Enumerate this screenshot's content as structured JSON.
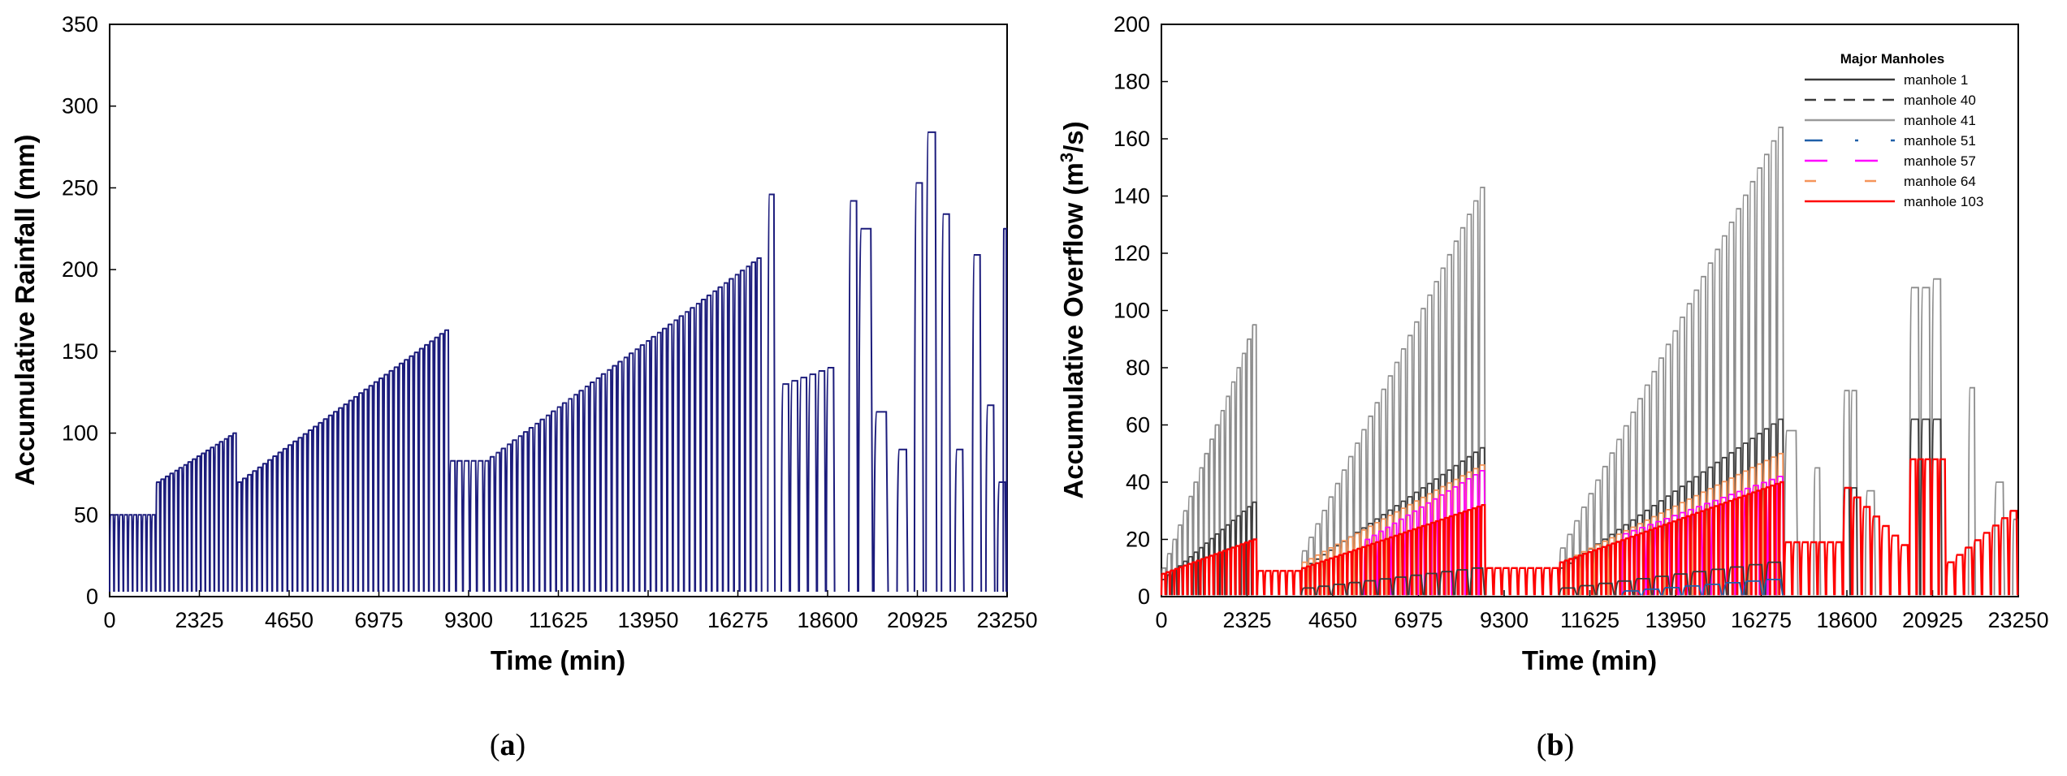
{
  "chart_data": [
    {
      "id": "a",
      "type": "line",
      "caption": "a",
      "xlabel": "Time (min)",
      "ylabel": "Accumulative Rainfall (mm)",
      "xlim": [
        0,
        23250
      ],
      "ylim": [
        0,
        350
      ],
      "xticks": [
        0,
        2325,
        4650,
        6975,
        9300,
        11625,
        13950,
        16275,
        18600,
        20925,
        23250
      ],
      "yticks": [
        0,
        50,
        100,
        150,
        200,
        250,
        300,
        350
      ],
      "series": [
        {
          "name": "Accumulative Rainfall",
          "color": "#1c1c7c",
          "pattern": "sawtooth",
          "events": [
            {
              "start": 0,
              "end": 1200,
              "count": 10,
              "peak": 50
            },
            {
              "start": 1200,
              "end": 3300,
              "count": 18,
              "peak": 70,
              "peak_end": 100
            },
            {
              "start": 3300,
              "end": 8800,
              "count": 42,
              "peak": 70,
              "peak_end": 163
            },
            {
              "start": 8800,
              "end": 9700,
              "count": 5,
              "peak": 83
            },
            {
              "start": 9700,
              "end": 16900,
              "count": 50,
              "peak": 83,
              "peak_end": 207
            },
            {
              "start": 17050,
              "end": 17250,
              "count": 1,
              "peak": 246
            },
            {
              "start": 17400,
              "end": 18800,
              "count": 6,
              "peak": 130,
              "peak_end": 140
            },
            {
              "start": 19150,
              "end": 19400,
              "count": 1,
              "peak": 242
            },
            {
              "start": 19400,
              "end": 20200,
              "count": 2,
              "peak": 225,
              "peak_end": 113
            },
            {
              "start": 20400,
              "end": 20700,
              "count": 1,
              "peak": 90
            },
            {
              "start": 20850,
              "end": 21100,
              "count": 1,
              "peak": 253
            },
            {
              "start": 21150,
              "end": 21450,
              "count": 1,
              "peak": 284
            },
            {
              "start": 21550,
              "end": 21800,
              "count": 1,
              "peak": 234
            },
            {
              "start": 21900,
              "end": 22150,
              "count": 1,
              "peak": 90
            },
            {
              "start": 22350,
              "end": 22600,
              "count": 1,
              "peak": 209
            },
            {
              "start": 22700,
              "end": 22950,
              "count": 1,
              "peak": 117
            },
            {
              "start": 23000,
              "end": 23250,
              "count": 1,
              "peak": 70
            },
            {
              "start": 23150,
              "end": 23250,
              "count": 1,
              "peak": 225
            }
          ]
        }
      ]
    },
    {
      "id": "b",
      "type": "line",
      "caption": "b",
      "xlabel": "Time (min)",
      "ylabel_prefix": "Accumulative Overflow (m",
      "ylabel_sup": "3",
      "ylabel_suffix": "/s)",
      "xlim": [
        0,
        23250
      ],
      "ylim": [
        0,
        200
      ],
      "xticks": [
        0,
        2325,
        4650,
        6975,
        9300,
        11625,
        13950,
        16275,
        18600,
        20925,
        23250
      ],
      "yticks": [
        0,
        20,
        40,
        60,
        80,
        100,
        120,
        140,
        160,
        180,
        200
      ],
      "legend": {
        "title": "Major Manholes",
        "position": "top-right",
        "entries": [
          {
            "name": "manhole 1",
            "color": "#3a3a3a",
            "dash": "solid"
          },
          {
            "name": "manhole 40",
            "color": "#3a3a3a",
            "dash": "dashed"
          },
          {
            "name": "manhole 41",
            "color": "#9a9a9a",
            "dash": "solid"
          },
          {
            "name": "manhole 51",
            "color": "#1f5fa8",
            "dash": "dashdot"
          },
          {
            "name": "manhole 57",
            "color": "#ff00ff",
            "dash": "longdash"
          },
          {
            "name": "manhole 64",
            "color": "#f5955a",
            "dash": "sparse"
          },
          {
            "name": "manhole 103",
            "color": "#ff0000",
            "dash": "solid"
          }
        ]
      },
      "series": [
        {
          "name": "manhole 41",
          "color": "#8c8c8c",
          "events": [
            {
              "start": 0,
              "end": 2600,
              "count": 18,
              "peak": 10,
              "peak_end": 95
            },
            {
              "start": 3800,
              "end": 8800,
              "count": 28,
              "peak": 16,
              "peak_end": 143
            },
            {
              "start": 10800,
              "end": 16900,
              "count": 32,
              "peak": 17,
              "peak_end": 164
            },
            {
              "start": 16900,
              "end": 17300,
              "count": 1,
              "peak": 58
            },
            {
              "start": 17700,
              "end": 17900,
              "count": 1,
              "peak": 45
            },
            {
              "start": 18500,
              "end": 18900,
              "count": 2,
              "peak": 72
            },
            {
              "start": 19100,
              "end": 19400,
              "count": 1,
              "peak": 37
            },
            {
              "start": 20300,
              "end": 20900,
              "count": 2,
              "peak": 108
            },
            {
              "start": 20900,
              "end": 21200,
              "count": 1,
              "peak": 111
            },
            {
              "start": 21900,
              "end": 22100,
              "count": 1,
              "peak": 73
            },
            {
              "start": 22600,
              "end": 22900,
              "count": 1,
              "peak": 40
            },
            {
              "start": 23100,
              "end": 23250,
              "count": 1,
              "peak": 27
            }
          ]
        },
        {
          "name": "manhole 40",
          "color": "#3a3a3a",
          "events": [
            {
              "start": 0,
              "end": 2600,
              "count": 18,
              "peak": 6,
              "peak_end": 33
            },
            {
              "start": 3800,
              "end": 8800,
              "count": 28,
              "peak": 10,
              "peak_end": 52
            },
            {
              "start": 10800,
              "end": 16900,
              "count": 32,
              "peak": 10,
              "peak_end": 62
            },
            {
              "start": 18500,
              "end": 18900,
              "count": 2,
              "peak": 38
            },
            {
              "start": 20300,
              "end": 21200,
              "count": 3,
              "peak": 62
            }
          ]
        },
        {
          "name": "manhole 64",
          "color": "#f5955a",
          "events": [
            {
              "start": 3800,
              "end": 8800,
              "count": 28,
              "peak": 12,
              "peak_end": 46
            },
            {
              "start": 10800,
              "end": 16900,
              "count": 32,
              "peak": 12,
              "peak_end": 50
            }
          ]
        },
        {
          "name": "manhole 57",
          "color": "#ff00ff",
          "events": [
            {
              "start": 5500,
              "end": 8800,
              "count": 18,
              "peak": 20,
              "peak_end": 44
            },
            {
              "start": 12500,
              "end": 16900,
              "count": 20,
              "peak": 22,
              "peak_end": 42
            }
          ]
        },
        {
          "name": "manhole 103",
          "color": "#ff0000",
          "events": [
            {
              "start": 0,
              "end": 2600,
              "count": 22,
              "peak": 8,
              "peak_end": 20
            },
            {
              "start": 2600,
              "end": 3800,
              "count": 6,
              "peak": 9
            },
            {
              "start": 3800,
              "end": 8800,
              "count": 40,
              "peak": 10,
              "peak_end": 32
            },
            {
              "start": 8800,
              "end": 10800,
              "count": 9,
              "peak": 10
            },
            {
              "start": 10800,
              "end": 16900,
              "count": 48,
              "peak": 12,
              "peak_end": 40
            },
            {
              "start": 16900,
              "end": 18500,
              "count": 7,
              "peak": 19
            },
            {
              "start": 18500,
              "end": 20300,
              "count": 7,
              "peak": 38,
              "peak_end": 18
            },
            {
              "start": 20300,
              "end": 21300,
              "count": 5,
              "peak": 48
            },
            {
              "start": 21300,
              "end": 23250,
              "count": 8,
              "peak": 12,
              "peak_end": 30
            }
          ]
        },
        {
          "name": "manhole 1",
          "color": "#3a3a3a",
          "events": [
            {
              "start": 3800,
              "end": 8800,
              "count": 12,
              "peak": 3,
              "peak_end": 10
            },
            {
              "start": 10800,
              "end": 16900,
              "count": 12,
              "peak": 3,
              "peak_end": 12
            }
          ]
        },
        {
          "name": "manhole 51",
          "color": "#1f5fa8",
          "events": [
            {
              "start": 12500,
              "end": 16900,
              "count": 8,
              "peak": 2,
              "peak_end": 6
            }
          ]
        }
      ]
    }
  ]
}
